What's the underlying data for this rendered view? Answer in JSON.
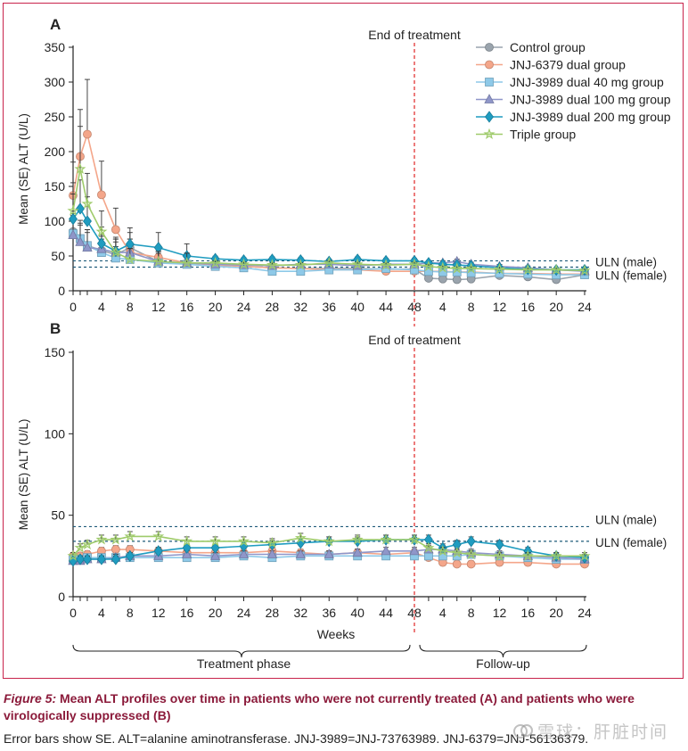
{
  "figure": {
    "label": "Figure 5:",
    "title": "Mean ALT profiles over time in patients who were not currently treated (A) and patients who were virologically suppressed (B)",
    "note": "Error bars show SE. ALT=alanine aminotransferase. JNJ-3989=JNJ-73763989. JNJ-6379=JNJ-56136379."
  },
  "watermark": {
    "text": "雪球：肝脏时间"
  },
  "shared": {
    "xlabel": "Weeks",
    "phases": [
      {
        "label": "Treatment phase"
      },
      {
        "label": "Follow-up"
      }
    ],
    "x_tick_labels": [
      "0",
      "4",
      "8",
      "12",
      "16",
      "20",
      "24",
      "28",
      "32",
      "36",
      "40",
      "44",
      "48",
      "4",
      "8",
      "12",
      "16",
      "20",
      "24"
    ],
    "treatment_weeks": [
      0,
      1,
      2,
      4,
      6,
      8,
      12,
      16,
      20,
      24,
      28,
      32,
      36,
      40,
      44,
      48
    ],
    "followup_weeks": [
      2,
      4,
      6,
      8,
      12,
      16,
      20,
      24
    ],
    "colors": {
      "control": "#9aa4ad",
      "dual_6379": "#f4a68a",
      "dual_40": "#8ec9e8",
      "dual_100": "#8f96c9",
      "dual_200": "#1f9cc0",
      "triple": "#9fcb6b",
      "eot_line": "#e02424",
      "uln_line": "#1f5b7a"
    }
  },
  "chart_data": [
    {
      "panel": "A",
      "type": "line",
      "title": "",
      "ylabel": "Mean (SE) ALT (U/L)",
      "ylim": [
        0,
        350
      ],
      "yticks": [
        0,
        50,
        100,
        150,
        200,
        250,
        300,
        350
      ],
      "end_of_treatment_label": "End of treatment",
      "uln": [
        {
          "label": "ULN (male)",
          "value": 43
        },
        {
          "label": "ULN (female)",
          "value": 34
        }
      ],
      "legend_position": "top-right",
      "series": [
        {
          "key": "control",
          "name": "Control group",
          "marker": "circle",
          "values": [
            85,
            72,
            65,
            58,
            52,
            62,
            42,
            40,
            38,
            35,
            33,
            32,
            32,
            32,
            31,
            31,
            18,
            17,
            16,
            17,
            22,
            20,
            16,
            23
          ]
        },
        {
          "key": "dual_6379",
          "name": "JNJ-6379 dual group",
          "marker": "circle",
          "values": [
            137,
            193,
            225,
            138,
            88,
            55,
            48,
            40,
            37,
            35,
            33,
            32,
            30,
            30,
            28,
            28,
            28,
            28,
            27,
            27,
            25,
            25,
            24,
            24
          ]
        },
        {
          "key": "dual_40",
          "name": "JNJ-3989 dual 40 mg group",
          "marker": "square",
          "values": [
            82,
            75,
            65,
            55,
            47,
            45,
            40,
            38,
            35,
            33,
            28,
            28,
            30,
            30,
            32,
            30,
            28,
            27,
            27,
            26,
            25,
            24,
            23,
            23
          ]
        },
        {
          "key": "dual_100",
          "name": "JNJ-3989 dual 100 mg group",
          "marker": "triangle",
          "values": [
            80,
            70,
            62,
            60,
            55,
            55,
            42,
            40,
            38,
            37,
            36,
            38,
            38,
            36,
            38,
            38,
            40,
            40,
            42,
            38,
            35,
            33,
            30,
            28
          ]
        },
        {
          "key": "dual_200",
          "name": "JNJ-3989 dual 200 mg group",
          "marker": "diamond",
          "values": [
            103,
            118,
            100,
            68,
            57,
            67,
            62,
            50,
            46,
            44,
            45,
            44,
            42,
            45,
            43,
            43,
            40,
            38,
            37,
            36,
            33,
            31,
            30,
            30
          ]
        },
        {
          "key": "triple",
          "name": "Triple group",
          "marker": "star",
          "values": [
            115,
            175,
            125,
            85,
            55,
            45,
            42,
            40,
            40,
            38,
            37,
            37,
            40,
            38,
            37,
            38,
            35,
            33,
            32,
            32,
            31,
            30,
            30,
            29
          ]
        }
      ]
    },
    {
      "panel": "B",
      "type": "line",
      "title": "",
      "ylabel": "Mean (SE) ALT (U/L)",
      "ylim": [
        0,
        150
      ],
      "yticks": [
        0,
        50,
        100,
        150
      ],
      "end_of_treatment_label": "End of treatment",
      "uln": [
        {
          "label": "ULN (male)",
          "value": 43
        },
        {
          "label": "ULN (female)",
          "value": 34
        }
      ],
      "series": [
        {
          "key": "dual_6379",
          "name": "JNJ-6379 dual group",
          "marker": "circle",
          "values": [
            25,
            25,
            26,
            28,
            29,
            29,
            28,
            27,
            27,
            27,
            28,
            27,
            26,
            27,
            26,
            27,
            24,
            21,
            20,
            20,
            21,
            21,
            20,
            20
          ]
        },
        {
          "key": "dual_40",
          "name": "JNJ-3989 dual 40 mg group",
          "marker": "square",
          "values": [
            23,
            23,
            24,
            24,
            24,
            24,
            24,
            24,
            24,
            25,
            24,
            25,
            25,
            25,
            25,
            25,
            25,
            25,
            25,
            26,
            25,
            24,
            23,
            23
          ]
        },
        {
          "key": "dual_100",
          "name": "JNJ-3989 dual 100 mg group",
          "marker": "triangle",
          "values": [
            22,
            22,
            23,
            23,
            24,
            25,
            25,
            26,
            25,
            26,
            26,
            26,
            26,
            27,
            28,
            28,
            29,
            29,
            28,
            27,
            26,
            25,
            24,
            23
          ]
        },
        {
          "key": "dual_200",
          "name": "JNJ-3989 dual 200 mg group",
          "marker": "diamond",
          "values": [
            22,
            23,
            23,
            23,
            23,
            25,
            28,
            30,
            30,
            31,
            32,
            33,
            34,
            34,
            35,
            35,
            35,
            30,
            32,
            34,
            32,
            28,
            25,
            24
          ]
        },
        {
          "key": "triple",
          "name": "Triple group",
          "marker": "star",
          "values": [
            25,
            30,
            32,
            35,
            35,
            37,
            37,
            34,
            34,
            34,
            33,
            36,
            34,
            35,
            35,
            35,
            30,
            28,
            27,
            26,
            25,
            25,
            25,
            25
          ]
        }
      ]
    }
  ]
}
